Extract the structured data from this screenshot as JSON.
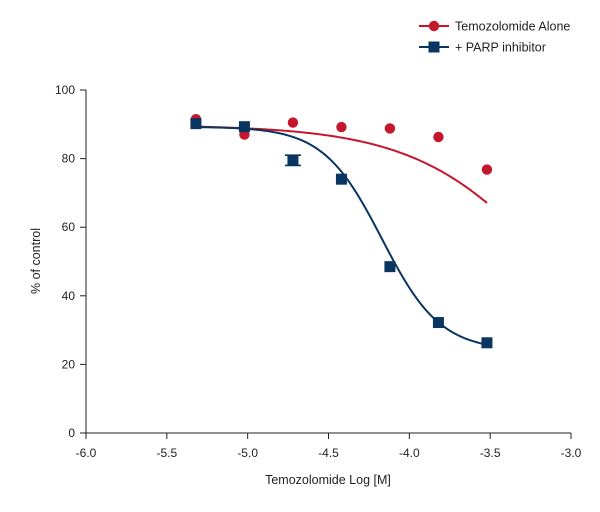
{
  "chart_data": {
    "type": "line",
    "xlabel": "Temozolomide Log [M]",
    "ylabel": "% of control",
    "xlim": [
      -6.0,
      -3.0
    ],
    "ylim": [
      0,
      100
    ],
    "x_ticks": [
      -6.0,
      -5.5,
      -5.0,
      -4.5,
      -4.0,
      -3.5,
      -3.0
    ],
    "x_tick_labels": [
      "-6.0",
      "-5.5",
      "-5.0",
      "-4.5",
      "-4.0",
      "-3.5",
      "-3.0"
    ],
    "y_ticks": [
      0,
      20,
      40,
      60,
      80,
      100
    ],
    "y_tick_labels": [
      "0",
      "20",
      "40",
      "60",
      "80",
      "100"
    ],
    "grid": false,
    "legend_position": "top-right",
    "series": [
      {
        "name": "Temozolomide Alone",
        "color": "#c4172c",
        "marker": "circle",
        "points": [
          {
            "x": -5.32,
            "y": 91.5
          },
          {
            "x": -5.02,
            "y": 87.0
          },
          {
            "x": -4.72,
            "y": 90.5
          },
          {
            "x": -4.42,
            "y": 89.2
          },
          {
            "x": -4.12,
            "y": 88.8
          },
          {
            "x": -3.82,
            "y": 86.3
          },
          {
            "x": -3.52,
            "y": 76.8
          }
        ],
        "fit": {
          "top": 89.8,
          "bottom": 0,
          "log_ic50": -3.05,
          "hill": 1.0
        }
      },
      {
        "name": "+ PARP inhibitor",
        "color": "#0a3561",
        "marker": "square",
        "points": [
          {
            "x": -5.32,
            "y": 90.2
          },
          {
            "x": -5.02,
            "y": 89.3
          },
          {
            "x": -4.72,
            "y": 79.5,
            "err": 1.5
          },
          {
            "x": -4.42,
            "y": 74.0
          },
          {
            "x": -4.12,
            "y": 48.5
          },
          {
            "x": -3.82,
            "y": 32.2
          },
          {
            "x": -3.52,
            "y": 26.3
          }
        ],
        "fit": {
          "top": 89.3,
          "bottom": 24.0,
          "log_ic50": -4.17,
          "hill": 2.4
        }
      }
    ]
  }
}
